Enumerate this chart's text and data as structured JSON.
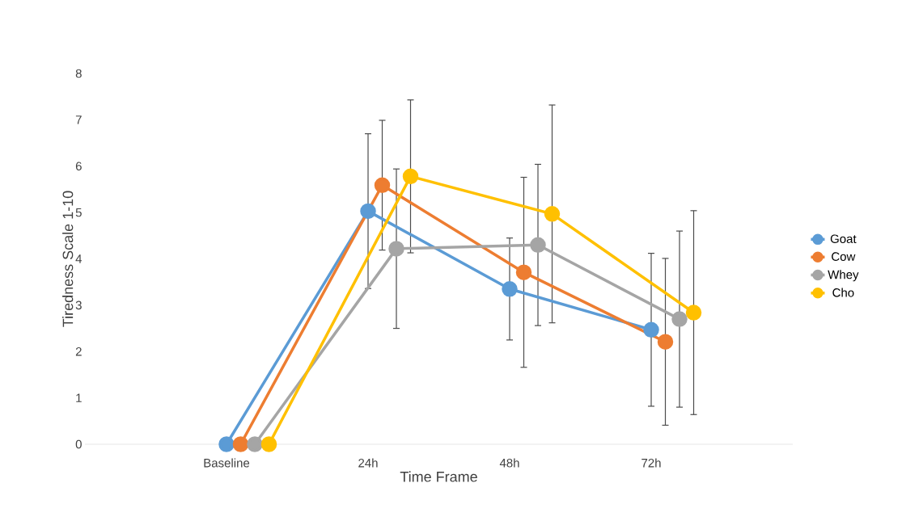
{
  "chart_data": {
    "type": "line",
    "xlabel": "Time Frame",
    "ylabel": "Tiredness Scale 1-10",
    "categories": [
      "Baseline",
      "24h",
      "48h",
      "72h"
    ],
    "series": [
      {
        "name": "Goat",
        "color": "#5b9bd5",
        "values": [
          0,
          5.03,
          3.35,
          2.47
        ],
        "errors": [
          null,
          1.67,
          1.1,
          1.65
        ]
      },
      {
        "name": "Cow",
        "color": "#ed7d31",
        "values": [
          0,
          5.59,
          3.71,
          2.21
        ],
        "errors": [
          null,
          1.4,
          2.05,
          1.8
        ]
      },
      {
        "name": "Whey",
        "color": "#a5a5a5",
        "values": [
          0,
          4.22,
          4.3,
          2.7
        ],
        "errors": [
          null,
          1.72,
          1.74,
          1.9
        ]
      },
      {
        "name": "Cho",
        "color": "#ffc000",
        "values": [
          0,
          5.78,
          4.97,
          2.84
        ],
        "errors": [
          null,
          1.65,
          2.35,
          2.2
        ]
      }
    ],
    "ylim": [
      0,
      8
    ],
    "yticks": [
      0,
      1,
      2,
      3,
      4,
      5,
      6,
      7,
      8
    ],
    "grid": false,
    "legend": "right",
    "marker": "circle",
    "line_style": "solid"
  }
}
